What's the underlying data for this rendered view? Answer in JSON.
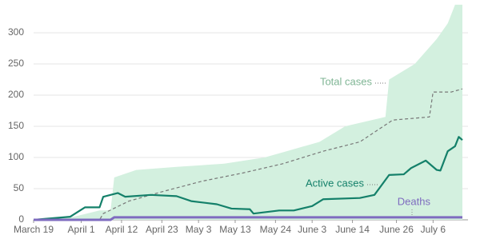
{
  "chart_data": {
    "type": "area-line",
    "xlim": [
      0,
      117
    ],
    "xticks": [
      {
        "value": 0,
        "label": "March 19"
      },
      {
        "value": 13,
        "label": "April 1"
      },
      {
        "value": 24,
        "label": "April 12"
      },
      {
        "value": 35,
        "label": "April 23"
      },
      {
        "value": 45,
        "label": "May 3"
      },
      {
        "value": 55,
        "label": "May 13"
      },
      {
        "value": 66,
        "label": "May 24"
      },
      {
        "value": 76,
        "label": "June 3"
      },
      {
        "value": 87,
        "label": "June 14"
      },
      {
        "value": 99,
        "label": "June 26"
      },
      {
        "value": 109,
        "label": "July 6"
      }
    ],
    "ylim": [
      0,
      350
    ],
    "yticks": [
      0,
      50,
      100,
      150,
      200,
      250,
      300
    ],
    "grid": true,
    "series": [
      {
        "name": "Total cases",
        "color": "#d3f0df",
        "label_color": "#7fb594",
        "style": "area",
        "x": [
          0,
          11,
          18,
          21,
          22,
          28,
          39,
          52,
          63,
          69,
          78,
          85,
          96,
          97,
          104,
          110,
          113,
          115,
          117
        ],
        "values": [
          0,
          5,
          15,
          15,
          68,
          80,
          85,
          90,
          100,
          110,
          125,
          150,
          165,
          225,
          250,
          290,
          315,
          345,
          345
        ]
      },
      {
        "color": "#777777",
        "style": "dashed",
        "x": [
          0,
          18,
          19,
          26,
          35,
          46,
          57,
          68,
          79,
          89,
          98,
          108,
          109,
          114,
          117
        ],
        "values": [
          0,
          0,
          10,
          30,
          45,
          62,
          75,
          90,
          110,
          125,
          160,
          165,
          205,
          205,
          210
        ]
      },
      {
        "name": "Active cases",
        "color": "#14806a",
        "label_color": "#14806a",
        "style": "line",
        "x": [
          0,
          10,
          14,
          18,
          19,
          23,
          25,
          32,
          39,
          43,
          50,
          54,
          59,
          60,
          67,
          71,
          76,
          79,
          89,
          93,
          97,
          101,
          103,
          107,
          110,
          111,
          113,
          115,
          116,
          117
        ],
        "values": [
          0,
          5,
          20,
          20,
          37,
          43,
          37,
          40,
          38,
          30,
          25,
          18,
          17,
          10,
          15,
          15,
          22,
          33,
          35,
          40,
          72,
          73,
          83,
          95,
          80,
          79,
          110,
          118,
          133,
          128
        ]
      },
      {
        "name": "Deaths",
        "color": "#7e6bbf",
        "label_color": "#7e6bbf",
        "style": "line",
        "x": [
          0,
          21,
          22,
          117
        ],
        "values": [
          0,
          0,
          4,
          4
        ]
      }
    ]
  }
}
